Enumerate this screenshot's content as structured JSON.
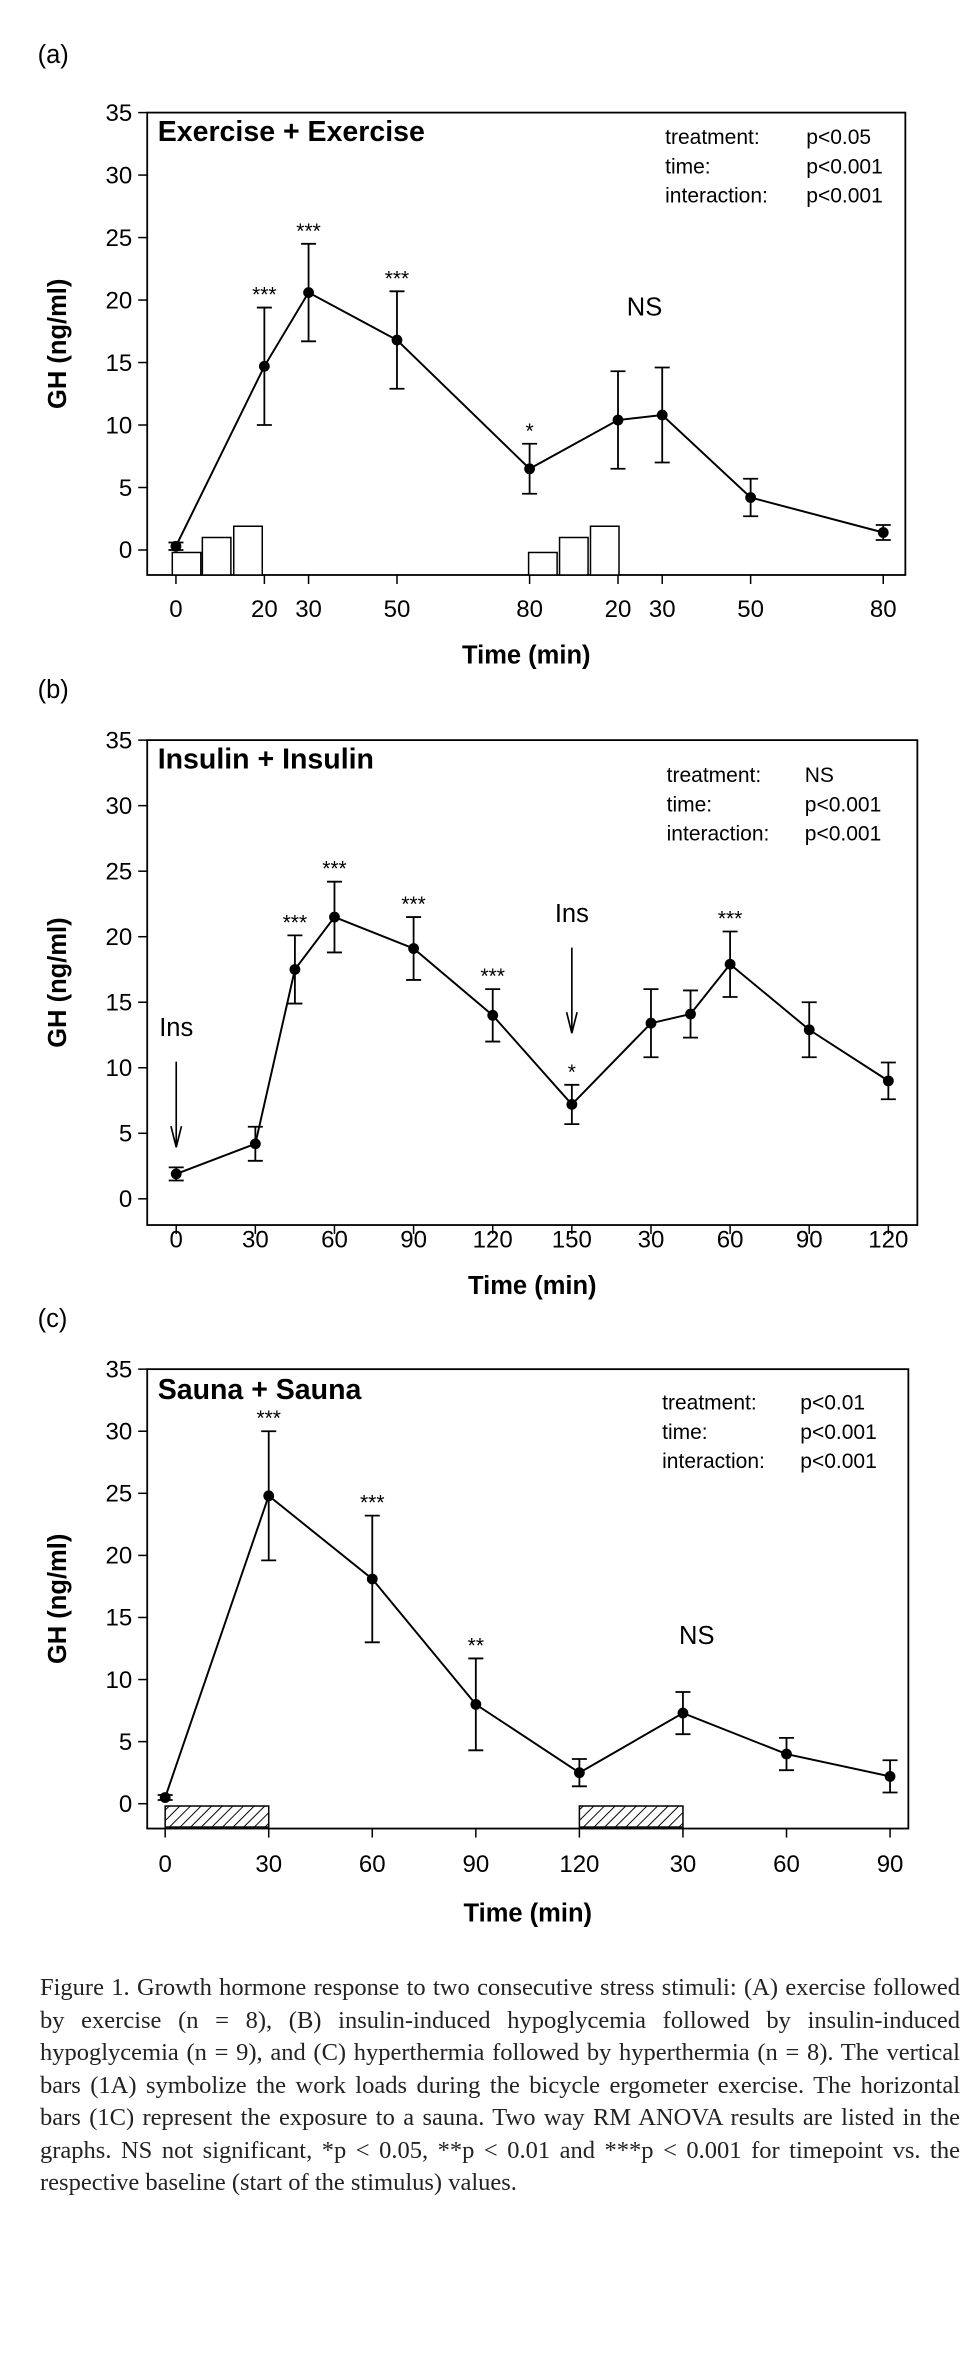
{
  "chart_data": [
    {
      "type": "line",
      "panel_label": "(a)",
      "title": "Exercise + Exercise",
      "stats": [
        [
          "treatment:",
          "p<0.05"
        ],
        [
          "time:",
          "p<0.001"
        ],
        [
          "interaction:",
          "p<0.001"
        ]
      ],
      "xlabel": "Time (min)",
      "ylabel": "GH (ng/ml)",
      "x": [
        0,
        20,
        30,
        50,
        80,
        100,
        110,
        130,
        160
      ],
      "values": [
        0.3,
        14.7,
        20.6,
        16.8,
        6.5,
        10.4,
        10.8,
        4.2,
        1.4
      ],
      "errors": [
        0.3,
        4.7,
        3.9,
        3.9,
        2.0,
        3.9,
        3.8,
        1.5,
        0.6
      ],
      "significance": [
        null,
        "***",
        "***",
        "***",
        "*",
        null,
        null,
        null,
        null
      ],
      "annotations": [
        {
          "x": 106,
          "y": 19.5,
          "label": "NS"
        }
      ],
      "workload": {
        "x": [
          2.4,
          9.2,
          16.3,
          83,
          90,
          97
        ],
        "values": [
          -0.2,
          1.0,
          1.9,
          -0.2,
          1.0,
          1.9
        ]
      },
      "xlim": [
        -6.5,
        165
      ],
      "ylim": [
        -2,
        35
      ],
      "xticks": [
        0,
        20,
        30,
        50,
        80,
        {
          "value": 100,
          "label": "20"
        },
        {
          "value": 110,
          "label": "30"
        },
        {
          "value": 130,
          "label": "50"
        },
        {
          "value": 160,
          "label": "80"
        }
      ],
      "yticks": [
        0,
        5,
        10,
        15,
        20,
        25,
        30,
        35
      ]
    },
    {
      "type": "line",
      "panel_label": "(b)",
      "title": "Insulin + Insulin",
      "stats": [
        [
          "treatment:",
          "NS"
        ],
        [
          "time:",
          "p<0.001"
        ],
        [
          "interaction:",
          "p<0.001"
        ]
      ],
      "xlabel": "Time (min)",
      "ylabel": "GH (ng/ml)",
      "x": [
        0,
        30,
        45,
        60,
        90,
        120,
        150,
        180,
        195,
        210,
        240,
        270
      ],
      "values": [
        1.9,
        4.2,
        17.5,
        21.5,
        19.1,
        14.0,
        7.2,
        13.4,
        14.1,
        17.9,
        12.9,
        9.0
      ],
      "errors": [
        0.5,
        1.3,
        2.6,
        2.7,
        2.4,
        2.0,
        1.5,
        2.6,
        1.8,
        2.5,
        2.1,
        1.4
      ],
      "significance": [
        null,
        null,
        "***",
        "***",
        "***",
        "***",
        "*",
        null,
        null,
        "***",
        null,
        null
      ],
      "annotations": [
        {
          "x": 0,
          "y": 13.1,
          "label": "Ins",
          "arrow": true
        },
        {
          "x": 150,
          "y": 21.8,
          "label": "Ins",
          "arrow": true
        }
      ],
      "xlim": [
        -11,
        281
      ],
      "ylim": [
        -2,
        35
      ],
      "xticks": [
        0,
        30,
        60,
        90,
        120,
        150,
        {
          "value": 180,
          "label": "30"
        },
        {
          "value": 210,
          "label": "60"
        },
        {
          "value": 240,
          "label": "90"
        },
        {
          "value": 270,
          "label": "120"
        }
      ],
      "yticks": [
        0,
        5,
        10,
        15,
        20,
        25,
        30,
        35
      ]
    },
    {
      "type": "line",
      "panel_label": "(c)",
      "title": "Sauna + Sauna",
      "stats": [
        [
          "treatment:",
          "p<0.01"
        ],
        [
          "time:",
          "p<0.001"
        ],
        [
          "interaction:",
          "p<0.001"
        ]
      ],
      "xlabel": "Time (min)",
      "ylabel": "GH (ng/ml)",
      "x": [
        0,
        30,
        60,
        90,
        120,
        150,
        180,
        210
      ],
      "values": [
        0.5,
        24.8,
        18.1,
        8.0,
        2.5,
        7.3,
        4.0,
        2.2
      ],
      "errors": [
        0.2,
        5.2,
        5.1,
        3.7,
        1.1,
        1.7,
        1.3,
        1.3
      ],
      "significance": [
        null,
        "***",
        "***",
        "**",
        null,
        null,
        null,
        null
      ],
      "annotations": [
        {
          "x": 154,
          "y": 13.6,
          "label": "NS"
        }
      ],
      "exposure": [
        [
          0,
          30
        ],
        [
          120,
          150
        ]
      ],
      "xlim": [
        -5.2,
        215.3
      ],
      "ylim": [
        -2,
        35
      ],
      "xticks": [
        0,
        30,
        60,
        90,
        120,
        {
          "value": 150,
          "label": "30"
        },
        {
          "value": 180,
          "label": "60"
        },
        {
          "value": 210,
          "label": "90"
        }
      ],
      "yticks": [
        0,
        5,
        10,
        15,
        20,
        25,
        30,
        35
      ]
    }
  ],
  "caption": "Figure 1. Growth hormone response to two consecutive stress stimuli: (A) exercise followed by exercise (n = 8), (B) insulin-induced hypoglycemia followed by insulin-induced hypoglycemia (n = 9), and (C) hyperthermia followed by hyperthermia (n = 8). The vertical bars (1A) symbolize the work loads during the bicycle ergometer exercise. The horizontal bars (1C) represent the exposure to a sauna. Two way RM ANOVA results are listed in the graphs. NS not significant, *p < 0.05, **p < 0.01 and ***p < 0.001 for timepoint vs. the respective baseline (start of the stimulus) values."
}
